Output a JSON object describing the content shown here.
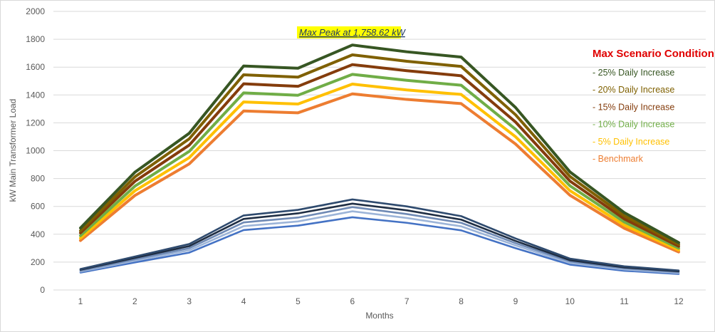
{
  "chart_data": {
    "type": "line",
    "xlabel": "Months",
    "ylabel": "kW Main Transformer Load",
    "x": [
      1,
      2,
      3,
      4,
      5,
      6,
      7,
      8,
      9,
      10,
      11,
      12
    ],
    "ylim": [
      0,
      2000
    ],
    "yticks": [
      0,
      200,
      400,
      600,
      800,
      1000,
      1200,
      1400,
      1600,
      1800,
      2000
    ],
    "ytick_labels": [
      "0",
      "200",
      "400",
      "600",
      "800",
      "1000",
      "1200",
      "1400",
      "1600",
      "1800",
      "2000"
    ],
    "xtick_labels": [
      "1",
      "2",
      "3",
      "4",
      "5",
      "6",
      "7",
      "8",
      "9",
      "10",
      "11",
      "12"
    ],
    "grid": "horizontal",
    "annotation": {
      "text": "Max Peak at 1,758.62 kW",
      "x": 6,
      "y": 1758.62,
      "highlight": "#ffff00"
    },
    "legend": {
      "title": "Max Scenario Condition",
      "title_color": "#e00000",
      "placement": "right"
    },
    "series": [
      {
        "name": "- 25% Daily Increase",
        "color": "#375623",
        "values": [
          445,
          845,
          1125,
          1608,
          1592,
          1758.62,
          1710,
          1672,
          1310,
          848,
          555,
          340
        ]
      },
      {
        "name": "- 20% Daily Increase",
        "color": "#7f6000",
        "values": [
          425,
          812,
          1085,
          1545,
          1528,
          1688,
          1642,
          1605,
          1258,
          815,
          532,
          327
        ]
      },
      {
        "name": "- 15% Daily Increase",
        "color": "#843c0c",
        "values": [
          410,
          780,
          1040,
          1480,
          1462,
          1618,
          1574,
          1538,
          1206,
          782,
          510,
          314
        ]
      },
      {
        "name": "- 10% Daily Increase",
        "color": "#70ad47",
        "values": [
          390,
          745,
          995,
          1415,
          1398,
          1548,
          1505,
          1470,
          1154,
          748,
          488,
          300
        ]
      },
      {
        "name": "- 5% Daily Increase",
        "color": "#ffc000",
        "values": [
          372,
          712,
          950,
          1350,
          1335,
          1478,
          1436,
          1404,
          1100,
          713,
          465,
          287
        ]
      },
      {
        "name": "- Benchmark",
        "color": "#ed7d31",
        "values": [
          355,
          678,
          905,
          1285,
          1272,
          1408,
          1368,
          1338,
          1048,
          680,
          443,
          273
        ]
      },
      {
        "color": "#2e4a6e",
        "values": [
          150,
          240,
          330,
          535,
          575,
          650,
          600,
          530,
          370,
          225,
          170,
          140
        ]
      },
      {
        "color": "#1f2e44",
        "values": [
          145,
          230,
          315,
          510,
          550,
          620,
          572,
          505,
          352,
          214,
          162,
          134
        ]
      },
      {
        "color": "#6f8ab5",
        "values": [
          138,
          220,
          300,
          485,
          520,
          595,
          545,
          482,
          336,
          205,
          155,
          128
        ]
      },
      {
        "color": "#9cb4d8",
        "values": [
          132,
          210,
          285,
          458,
          492,
          565,
          517,
          457,
          320,
          194,
          147,
          122
        ]
      },
      {
        "color": "#4472c4",
        "values": [
          125,
          198,
          268,
          430,
          462,
          522,
          482,
          428,
          300,
          182,
          138,
          115
        ]
      }
    ]
  }
}
